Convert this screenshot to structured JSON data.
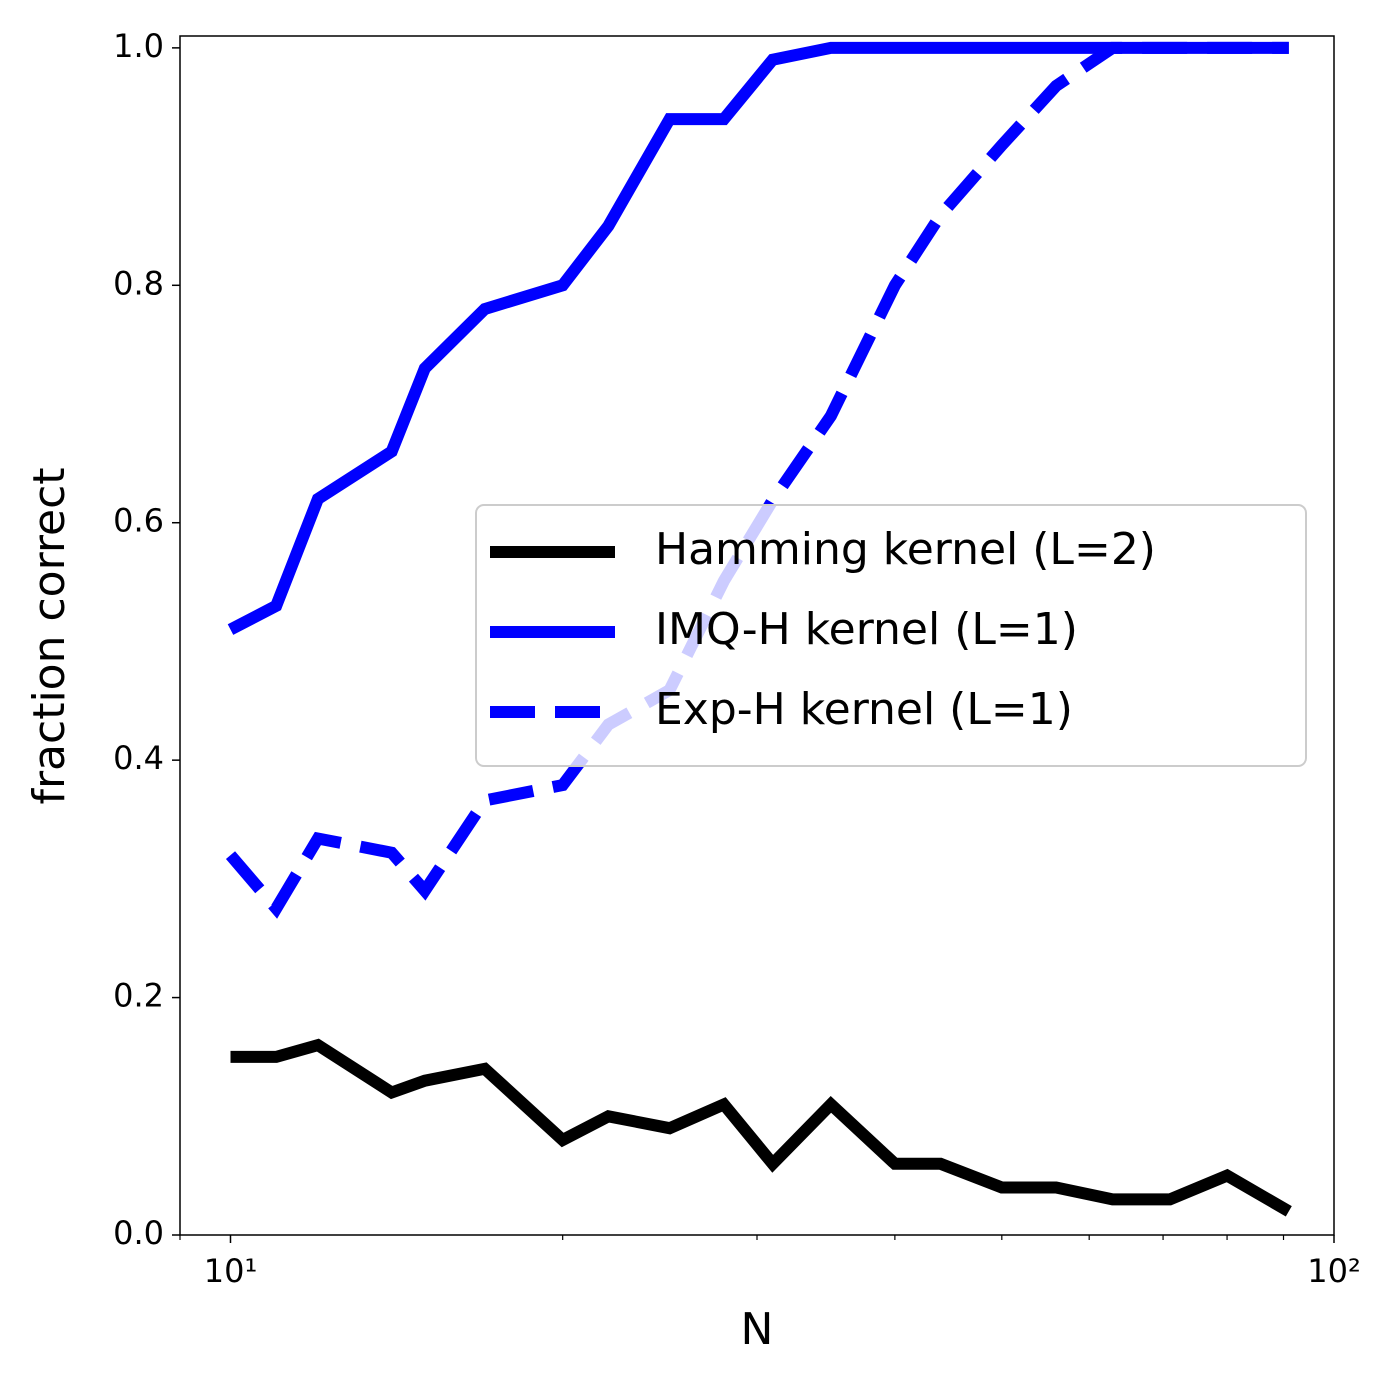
{
  "chart_data": {
    "type": "line",
    "x_label": "N",
    "y_label": "fraction correct",
    "x_log": true,
    "xlim": [
      9,
      100
    ],
    "xticks": [
      {
        "value": 10,
        "label": "10¹"
      },
      {
        "value": 100,
        "label": "10²"
      }
    ],
    "xminor_ticks": [
      9,
      20,
      30,
      40,
      50,
      60,
      70,
      80,
      90
    ],
    "ylim": [
      0,
      1.01
    ],
    "yticks": [
      {
        "value": 0,
        "label": "0.0"
      },
      {
        "value": 0.2,
        "label": "0.2"
      },
      {
        "value": 0.4,
        "label": "0.4"
      },
      {
        "value": 0.6,
        "label": "0.6"
      },
      {
        "value": 0.8,
        "label": "0.8"
      },
      {
        "value": 1,
        "label": "1.0"
      }
    ],
    "legend_position": "center right",
    "x": [
      10,
      11,
      12,
      14,
      15,
      17,
      20,
      22,
      25,
      28,
      31,
      35,
      40,
      44,
      50,
      56,
      63,
      71,
      80,
      91
    ],
    "series": [
      {
        "name": "Hamming kernel (L=2)",
        "color": "#000000",
        "linestyle": "solid",
        "values": [
          0.15,
          0.15,
          0.16,
          0.12,
          0.13,
          0.14,
          0.08,
          0.1,
          0.09,
          0.11,
          0.06,
          0.11,
          0.06,
          0.06,
          0.04,
          0.04,
          0.03,
          0.03,
          0.05,
          0.02
        ]
      },
      {
        "name": "IMQ-H kernel (L=1)",
        "color": "#0000ff",
        "linestyle": "solid",
        "values": [
          0.51,
          0.53,
          0.62,
          0.66,
          0.73,
          0.78,
          0.8,
          0.85,
          0.94,
          0.94,
          0.99,
          1.0,
          1.0,
          1.0,
          1.0,
          1.0,
          1.0,
          1.0,
          1.0,
          1.0
        ]
      },
      {
        "name": "Exp-H kernel (L=1)",
        "color": "#0000ff",
        "linestyle": "dashed",
        "values": [
          0.32,
          0.275,
          0.334,
          0.322,
          0.29,
          0.366,
          0.379,
          0.43,
          0.459,
          0.551,
          0.619,
          0.69,
          0.8,
          0.859,
          0.918,
          0.968,
          1.0,
          1.0,
          1.0,
          1.0
        ]
      }
    ]
  }
}
